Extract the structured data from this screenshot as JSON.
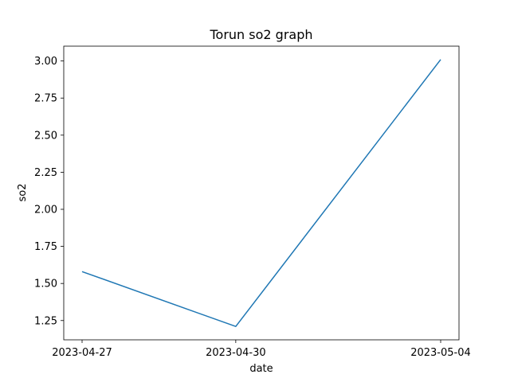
{
  "chart_data": {
    "type": "line",
    "title": "Torun so2 graph",
    "xlabel": "date",
    "ylabel": "so2",
    "x": [
      "2023-04-27",
      "2023-04-30",
      "2023-05-04"
    ],
    "series": [
      {
        "values": [
          1.58,
          1.21,
          3.01
        ],
        "color": "#1f77b4"
      }
    ],
    "xticks": [
      "2023-04-27",
      "2023-04-30",
      "2023-05-04"
    ],
    "yticks": [
      1.25,
      1.5,
      1.75,
      2.0,
      2.25,
      2.5,
      2.75,
      3.0
    ],
    "ytick_labels": [
      "1.25",
      "1.50",
      "1.75",
      "2.00",
      "2.25",
      "2.50",
      "2.75",
      "3.00"
    ],
    "ylim": [
      1.12,
      3.1
    ],
    "grid": false,
    "legend": "none"
  }
}
